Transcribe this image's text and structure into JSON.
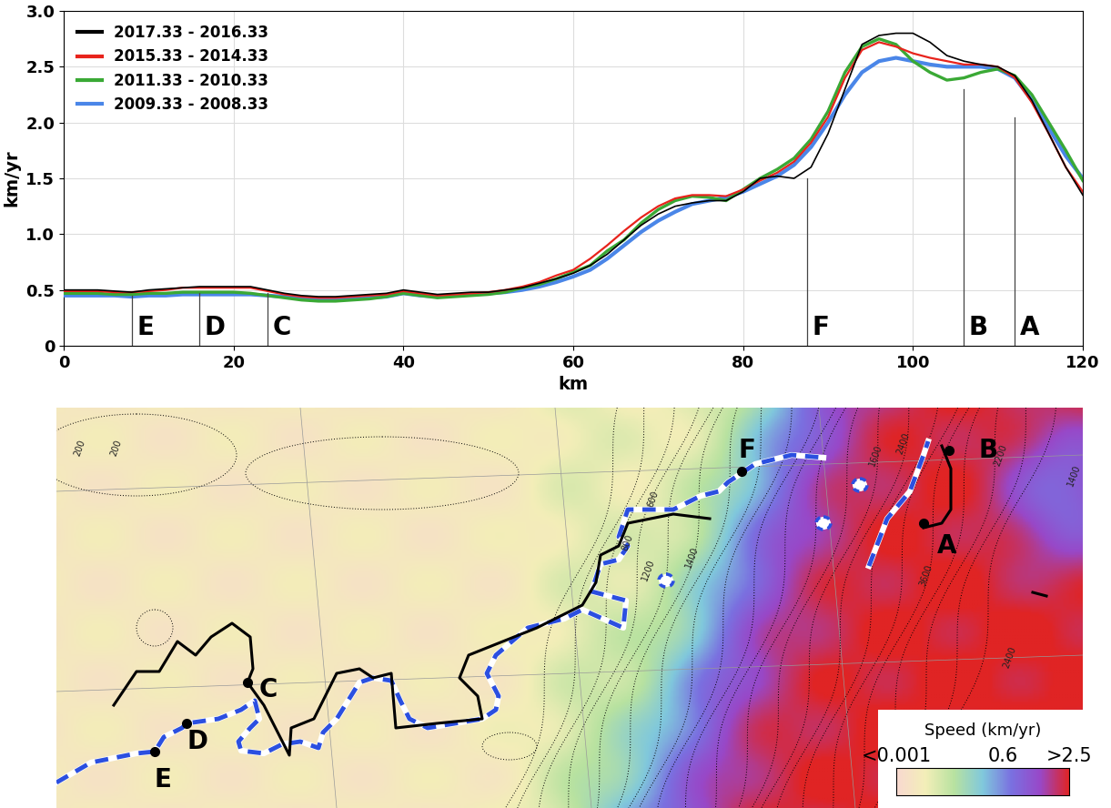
{
  "chart_data": {
    "type": "line",
    "xlabel": "km",
    "ylabel": "km/yr",
    "xlim": [
      0,
      120
    ],
    "ylim": [
      0,
      3.0
    ],
    "xticks": [
      0,
      20,
      40,
      60,
      80,
      100,
      120
    ],
    "yticks": [
      0,
      0.5,
      {
        "value": 1,
        "label": "1.0"
      },
      1.5,
      {
        "value": 2,
        "label": "2.0"
      },
      2.5,
      {
        "value": 3,
        "label": "3.0"
      }
    ],
    "grid": true,
    "legend": "upper left",
    "x": [
      0,
      2,
      4,
      6,
      8,
      10,
      12,
      14,
      16,
      18,
      20,
      22,
      24,
      26,
      28,
      30,
      32,
      34,
      36,
      38,
      40,
      42,
      44,
      46,
      48,
      50,
      52,
      54,
      56,
      58,
      60,
      62,
      64,
      66,
      68,
      70,
      72,
      74,
      76,
      78,
      80,
      82,
      84,
      86,
      88,
      90,
      92,
      94,
      96,
      98,
      100,
      102,
      104,
      106,
      108,
      110,
      112,
      114,
      116,
      118,
      120
    ],
    "series": [
      {
        "name": "2017.33 - 2016.33",
        "color": "#000000",
        "values": [
          0.5,
          0.5,
          0.5,
          0.49,
          0.48,
          0.5,
          0.51,
          0.52,
          0.53,
          0.53,
          0.53,
          0.53,
          0.5,
          0.47,
          0.45,
          0.44,
          0.44,
          0.45,
          0.46,
          0.47,
          0.5,
          0.48,
          0.46,
          0.47,
          0.48,
          0.48,
          0.5,
          0.52,
          0.56,
          0.6,
          0.65,
          0.72,
          0.82,
          0.95,
          1.08,
          1.18,
          1.25,
          1.28,
          1.3,
          1.3,
          1.38,
          1.5,
          1.52,
          1.5,
          1.6,
          1.9,
          2.3,
          2.7,
          2.78,
          2.8,
          2.8,
          2.72,
          2.6,
          2.55,
          2.52,
          2.5,
          2.42,
          2.2,
          1.9,
          1.6,
          1.35
        ]
      },
      {
        "name": "2015.33 - 2014.33",
        "color": "#e8231c",
        "values": [
          0.49,
          0.49,
          0.49,
          0.48,
          0.48,
          0.49,
          0.5,
          0.52,
          0.52,
          0.52,
          0.52,
          0.52,
          0.49,
          0.46,
          0.44,
          0.43,
          0.43,
          0.44,
          0.45,
          0.46,
          0.49,
          0.47,
          0.45,
          0.46,
          0.47,
          0.48,
          0.5,
          0.53,
          0.57,
          0.63,
          0.68,
          0.78,
          0.9,
          1.03,
          1.15,
          1.25,
          1.32,
          1.35,
          1.35,
          1.34,
          1.4,
          1.48,
          1.55,
          1.65,
          1.82,
          2.05,
          2.4,
          2.65,
          2.72,
          2.68,
          2.62,
          2.58,
          2.55,
          2.52,
          2.52,
          2.5,
          2.4,
          2.18,
          1.9,
          1.6,
          1.38
        ]
      },
      {
        "name": "2011.33 - 2010.33",
        "color": "#3aa935",
        "values": [
          0.47,
          0.47,
          0.47,
          0.46,
          0.46,
          0.47,
          0.47,
          0.48,
          0.48,
          0.48,
          0.48,
          0.47,
          0.45,
          0.43,
          0.41,
          0.4,
          0.4,
          0.41,
          0.42,
          0.44,
          0.47,
          0.45,
          0.43,
          0.44,
          0.45,
          0.46,
          0.48,
          0.52,
          0.55,
          0.6,
          0.66,
          0.72,
          0.85,
          0.95,
          1.1,
          1.22,
          1.3,
          1.34,
          1.33,
          1.3,
          1.4,
          1.5,
          1.58,
          1.68,
          1.85,
          2.1,
          2.45,
          2.68,
          2.75,
          2.7,
          2.55,
          2.45,
          2.38,
          2.4,
          2.45,
          2.48,
          2.42,
          2.25,
          2.0,
          1.75,
          1.48
        ]
      },
      {
        "name": "2009.33 - 2008.33",
        "color": "#4a86e8",
        "values": [
          0.45,
          0.45,
          0.45,
          0.45,
          0.44,
          0.45,
          0.45,
          0.46,
          0.46,
          0.46,
          0.46,
          0.46,
          0.45,
          0.44,
          0.43,
          0.42,
          0.42,
          0.42,
          0.43,
          0.44,
          0.47,
          0.45,
          0.44,
          0.45,
          0.46,
          0.47,
          0.48,
          0.5,
          0.53,
          0.57,
          0.62,
          0.68,
          0.78,
          0.9,
          1.02,
          1.12,
          1.2,
          1.27,
          1.3,
          1.33,
          1.38,
          1.45,
          1.52,
          1.62,
          1.78,
          2.0,
          2.25,
          2.45,
          2.55,
          2.58,
          2.55,
          2.52,
          2.5,
          2.5,
          2.5,
          2.48,
          2.4,
          2.2,
          1.95,
          1.7,
          1.5
        ]
      }
    ],
    "annotations": [
      {
        "label": "E",
        "x": 8,
        "y": 0.45
      },
      {
        "label": "D",
        "x": 16,
        "y": 0.47
      },
      {
        "label": "C",
        "x": 24,
        "y": 0.47
      },
      {
        "label": "F",
        "x": 87.5,
        "y": 1.5
      },
      {
        "label": "B",
        "x": 106,
        "y": 2.3
      },
      {
        "label": "A",
        "x": 112,
        "y": 2.05
      }
    ]
  },
  "map": {
    "points": [
      {
        "label": "A"
      },
      {
        "label": "B"
      },
      {
        "label": "C"
      },
      {
        "label": "D"
      },
      {
        "label": "E"
      },
      {
        "label": "F"
      }
    ],
    "contour_labels": [
      200,
      200,
      600,
      800,
      1200,
      1400,
      1600,
      2400,
      2200,
      1400,
      3600,
      2400
    ],
    "colorbar": {
      "title": "Speed (km/yr)",
      "range": [
        0.001,
        2.5
      ],
      "ticks": [
        {
          "value": 0.001,
          "label": "<0.001"
        },
        0.6,
        {
          "value": 2.5,
          "label": ">2.5"
        }
      ]
    }
  }
}
